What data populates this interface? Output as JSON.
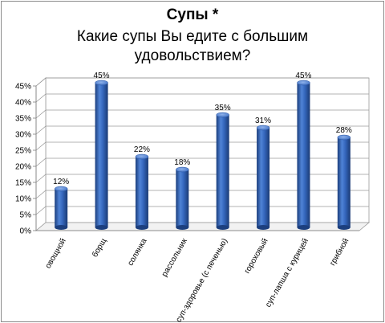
{
  "chart_data": {
    "type": "bar",
    "title": "Супы *",
    "subtitle_lines": [
      "Какие супы Вы едите с большим",
      "удовольствием?"
    ],
    "categories": [
      "овощной",
      "борщ",
      "солянка",
      "рассольник",
      "суп-здоровье (с печенью)",
      "гороховый",
      "суп-лапша с курицей",
      "грибной"
    ],
    "values": [
      12,
      45,
      22,
      18,
      35,
      31,
      45,
      28
    ],
    "data_labels": [
      "12%",
      "45%",
      "22%",
      "18%",
      "35%",
      "31%",
      "45%",
      "28%"
    ],
    "yticks": [
      "0%",
      "5%",
      "10%",
      "15%",
      "20%",
      "25%",
      "30%",
      "35%",
      "40%",
      "45%"
    ],
    "ylim": [
      0,
      45
    ],
    "grid": true,
    "legend": "none",
    "bar_color": "#2e63b5"
  }
}
